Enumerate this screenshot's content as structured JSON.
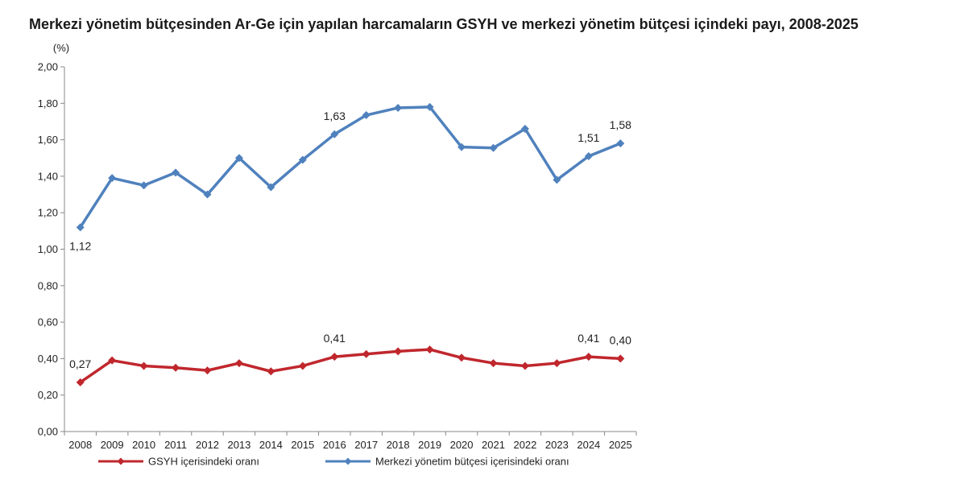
{
  "title": "Merkezi yönetim bütçesinden Ar-Ge için yapılan harcamaların GSYH ve merkezi yönetim bütçesi içindeki payı, 2008-2025",
  "chart_data": {
    "type": "line",
    "title": "Merkezi yönetim bütçesinden Ar-Ge için yapılan harcamaların GSYH ve merkezi yönetim bütçesi içindeki payı, 2008-2025",
    "ylabel": "(%)",
    "xlabel": "",
    "ylim": [
      0,
      2
    ],
    "yticks": [
      "0,00",
      "0,20",
      "0,40",
      "0,60",
      "0,80",
      "1,00",
      "1,20",
      "1,40",
      "1,60",
      "1,80",
      "2,00"
    ],
    "categories": [
      "2008",
      "2009",
      "2010",
      "2011",
      "2012",
      "2013",
      "2014",
      "2015",
      "2016",
      "2017",
      "2018",
      "2019",
      "2020",
      "2021",
      "2022",
      "2023",
      "2024",
      "2025"
    ],
    "grid": false,
    "legend_position": "bottom",
    "series": [
      {
        "name": "GSYH içerisindeki oranı",
        "color": "#C0272D",
        "marker": "diamond",
        "values": [
          0.27,
          0.39,
          0.36,
          0.35,
          0.335,
          0.375,
          0.33,
          0.36,
          0.41,
          0.425,
          0.44,
          0.45,
          0.405,
          0.375,
          0.36,
          0.375,
          0.41,
          0.4
        ],
        "labels": [
          {
            "index": 0,
            "text": "0,27",
            "pos": "above"
          },
          {
            "index": 8,
            "text": "0,41",
            "pos": "above"
          },
          {
            "index": 16,
            "text": "0,41",
            "pos": "above"
          },
          {
            "index": 17,
            "text": "0,40",
            "pos": "above"
          }
        ]
      },
      {
        "name": "Merkezi yönetim bütçesi içerisindeki oranı",
        "color": "#4F81BD",
        "marker": "diamond",
        "values": [
          1.12,
          1.39,
          1.35,
          1.42,
          1.3,
          1.5,
          1.34,
          1.49,
          1.63,
          1.735,
          1.775,
          1.78,
          1.56,
          1.555,
          1.66,
          1.38,
          1.51,
          1.58
        ],
        "labels": [
          {
            "index": 0,
            "text": "1,12",
            "pos": "below"
          },
          {
            "index": 8,
            "text": "1,63",
            "pos": "above"
          },
          {
            "index": 16,
            "text": "1,51",
            "pos": "above"
          },
          {
            "index": 17,
            "text": "1,58",
            "pos": "above"
          }
        ]
      }
    ]
  }
}
